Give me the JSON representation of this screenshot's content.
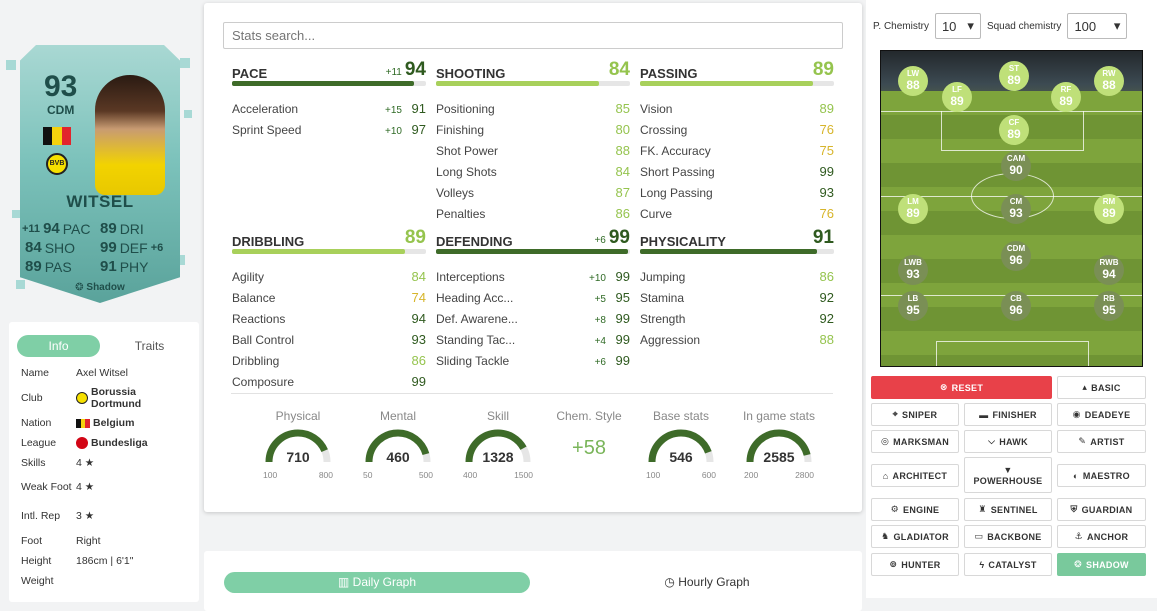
{
  "card": {
    "rating": "93",
    "position": "CDM",
    "name": "WITSEL",
    "club_badge": "BVB",
    "stats": [
      {
        "chg": "+11",
        "val": "94",
        "lbl": "PAC",
        "val2": "89",
        "lbl2": "DRI",
        "chg2": ""
      },
      {
        "chg": "",
        "val": "84",
        "lbl": "SHO",
        "val2": "99",
        "lbl2": "DEF",
        "chg2": "+6"
      },
      {
        "chg": "",
        "val": "89",
        "lbl": "PAS",
        "val2": "91",
        "lbl2": "PHY",
        "chg2": ""
      }
    ],
    "footer": "Shadow"
  },
  "info": {
    "tabs": [
      "Info",
      "Traits"
    ],
    "rows": [
      {
        "k": "Name",
        "v": "Axel Witsel"
      },
      {
        "k": "Club",
        "v": "Borussia Dortmund"
      },
      {
        "k": "Nation",
        "v": "Belgium"
      },
      {
        "k": "League",
        "v": "Bundesliga"
      },
      {
        "k": "Skills",
        "v": "4 ★"
      },
      {
        "k": "Weak Foot",
        "v": "4 ★"
      },
      {
        "k": "Intl. Rep",
        "v": "3 ★"
      },
      {
        "k": "Foot",
        "v": "Right"
      },
      {
        "k": "Height",
        "v": "186cm | 6'1\""
      },
      {
        "k": "Weight",
        "v": ""
      }
    ]
  },
  "search": {
    "placeholder": "Stats search..."
  },
  "stats": {
    "pace": {
      "name": "PACE",
      "chg": "+11",
      "val": "94",
      "attrs": [
        {
          "n": "Acceleration",
          "c": "+15",
          "v": "91"
        },
        {
          "n": "Sprint Speed",
          "c": "+10",
          "v": "97"
        }
      ]
    },
    "shooting": {
      "name": "SHOOTING",
      "chg": "",
      "val": "84",
      "attrs": [
        {
          "n": "Positioning",
          "c": "",
          "v": "85"
        },
        {
          "n": "Finishing",
          "c": "",
          "v": "80"
        },
        {
          "n": "Shot Power",
          "c": "",
          "v": "88"
        },
        {
          "n": "Long Shots",
          "c": "",
          "v": "84"
        },
        {
          "n": "Volleys",
          "c": "",
          "v": "87"
        },
        {
          "n": "Penalties",
          "c": "",
          "v": "86"
        }
      ]
    },
    "passing": {
      "name": "PASSING",
      "chg": "",
      "val": "89",
      "attrs": [
        {
          "n": "Vision",
          "c": "",
          "v": "89"
        },
        {
          "n": "Crossing",
          "c": "",
          "v": "76"
        },
        {
          "n": "FK. Accuracy",
          "c": "",
          "v": "75"
        },
        {
          "n": "Short Passing",
          "c": "",
          "v": "99"
        },
        {
          "n": "Long Passing",
          "c": "",
          "v": "93"
        },
        {
          "n": "Curve",
          "c": "",
          "v": "76"
        }
      ]
    },
    "dribbling": {
      "name": "DRIBBLING",
      "chg": "",
      "val": "89",
      "attrs": [
        {
          "n": "Agility",
          "c": "",
          "v": "84"
        },
        {
          "n": "Balance",
          "c": "",
          "v": "74"
        },
        {
          "n": "Reactions",
          "c": "",
          "v": "94"
        },
        {
          "n": "Ball Control",
          "c": "",
          "v": "93"
        },
        {
          "n": "Dribbling",
          "c": "",
          "v": "86"
        },
        {
          "n": "Composure",
          "c": "",
          "v": "99"
        }
      ]
    },
    "defending": {
      "name": "DEFENDING",
      "chg": "+6",
      "val": "99",
      "attrs": [
        {
          "n": "Interceptions",
          "c": "+10",
          "v": "99"
        },
        {
          "n": "Heading Acc...",
          "c": "+5",
          "v": "95"
        },
        {
          "n": "Def. Awarene...",
          "c": "+8",
          "v": "99"
        },
        {
          "n": "Standing Tac...",
          "c": "+4",
          "v": "99"
        },
        {
          "n": "Sliding Tackle",
          "c": "+6",
          "v": "99"
        }
      ]
    },
    "physicality": {
      "name": "PHYSICALITY",
      "chg": "",
      "val": "91",
      "attrs": [
        {
          "n": "Jumping",
          "c": "",
          "v": "86"
        },
        {
          "n": "Stamina",
          "c": "",
          "v": "92"
        },
        {
          "n": "Strength",
          "c": "",
          "v": "92"
        },
        {
          "n": "Aggression",
          "c": "",
          "v": "88"
        }
      ]
    }
  },
  "gauges": [
    {
      "title": "Physical",
      "value": "710",
      "min": "100",
      "max": "800",
      "fraction": 0.87
    },
    {
      "title": "Mental",
      "value": "460",
      "min": "50",
      "max": "500",
      "fraction": 0.91
    },
    {
      "title": "Skill",
      "value": "1328",
      "min": "400",
      "max": "1500",
      "fraction": 0.84
    },
    {
      "title": "Base stats",
      "value": "546",
      "min": "100",
      "max": "600",
      "fraction": 0.89
    },
    {
      "title": "In game stats",
      "value": "2585",
      "min": "200",
      "max": "2800",
      "fraction": 0.92
    }
  ],
  "chem_style": {
    "title": "Chem. Style",
    "value": "+58"
  },
  "graph": {
    "daily": "Daily Graph",
    "hourly": "Hourly Graph"
  },
  "chemistry": {
    "p_label": "P. Chemistry",
    "p_value": "10",
    "squad_label": "Squad chemistry",
    "squad_value": "100"
  },
  "pitch_players": [
    {
      "pos": "LW",
      "r": "88"
    },
    {
      "pos": "ST",
      "r": "89"
    },
    {
      "pos": "RW",
      "r": "88"
    },
    {
      "pos": "LF",
      "r": "89"
    },
    {
      "pos": "RF",
      "r": "89"
    },
    {
      "pos": "CF",
      "r": "89"
    },
    {
      "pos": "CAM",
      "r": "90"
    },
    {
      "pos": "LM",
      "r": "89"
    },
    {
      "pos": "CM",
      "r": "93"
    },
    {
      "pos": "RM",
      "r": "89"
    },
    {
      "pos": "LWB",
      "r": "93"
    },
    {
      "pos": "CDM",
      "r": "96"
    },
    {
      "pos": "RWB",
      "r": "94"
    },
    {
      "pos": "LB",
      "r": "95"
    },
    {
      "pos": "CB",
      "r": "96"
    },
    {
      "pos": "RB",
      "r": "95"
    }
  ],
  "styles": {
    "reset": "RESET",
    "basic": "BASIC",
    "sniper": "SNIPER",
    "finisher": "FINISHER",
    "deadeye": "DEADEYE",
    "marksman": "MARKSMAN",
    "hawk": "HAWK",
    "artist": "ARTIST",
    "architect": "ARCHITECT",
    "powerhouse": "POWERHOUSE",
    "maestro": "MAESTRO",
    "engine": "ENGINE",
    "sentinel": "SENTINEL",
    "guardian": "GUARDIAN",
    "gladiator": "GLADIATOR",
    "backbone": "BACKBONE",
    "anchor": "ANCHOR",
    "hunter": "HUNTER",
    "catalyst": "CATALYST",
    "shadow": "SHADOW"
  },
  "colors": {
    "accent": "#7fcfa6",
    "reset": "#e84149",
    "dark_green": "#3e6b29",
    "lime": "#a8d05b"
  }
}
